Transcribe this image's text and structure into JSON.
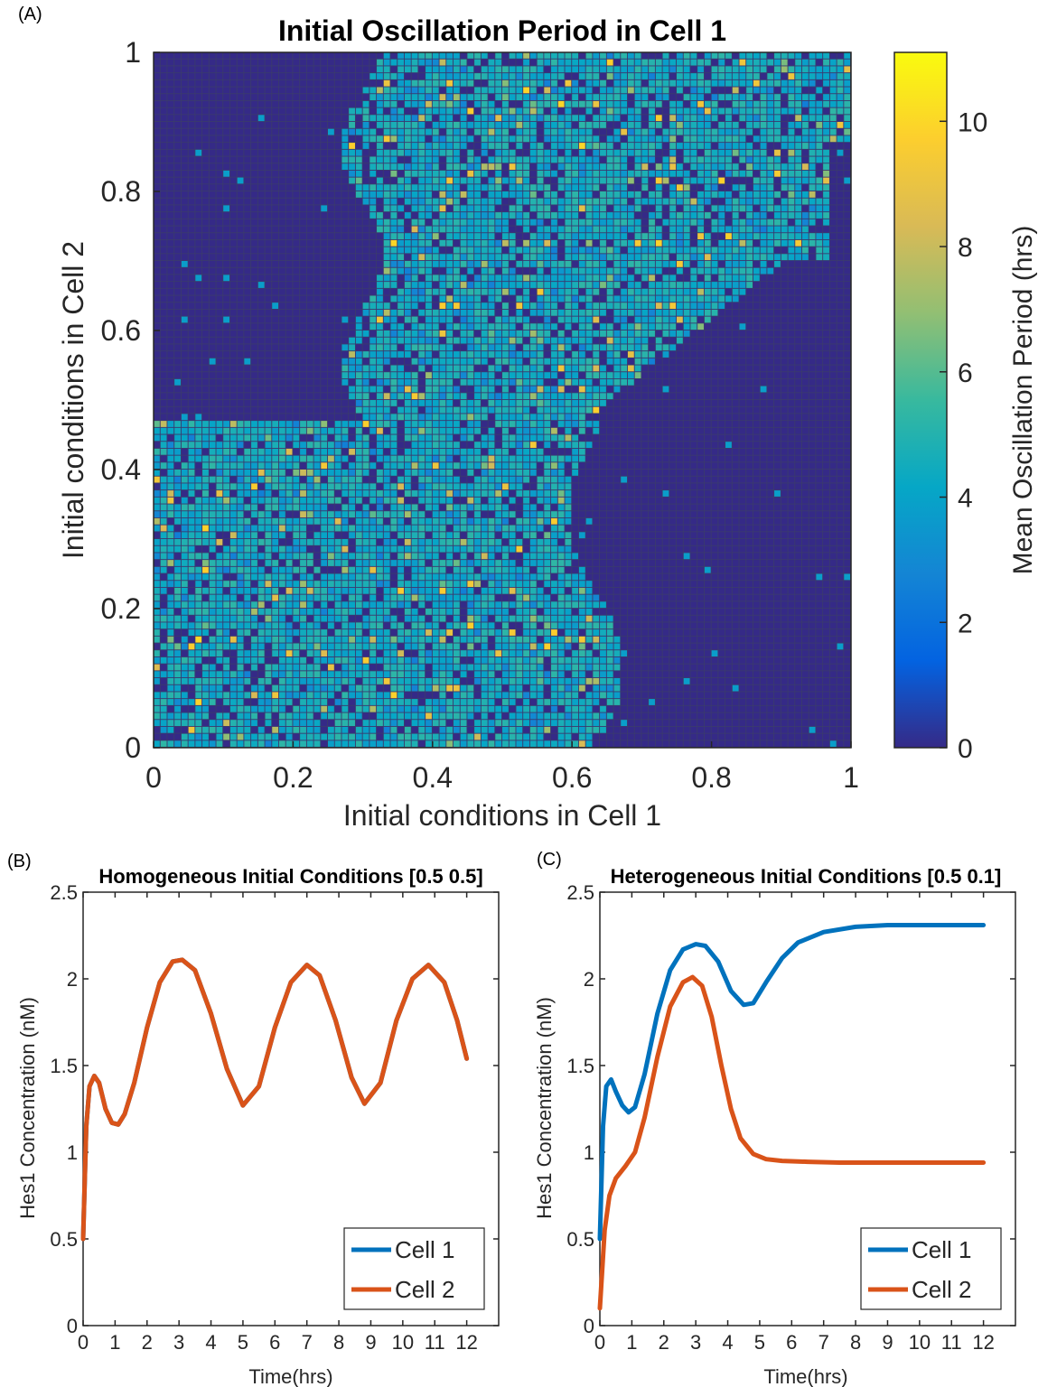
{
  "panels": {
    "a": "(A)",
    "b": "(B)",
    "c": "(C)"
  },
  "colors": {
    "cell1": "#0072BD",
    "cell2": "#D95319",
    "parula": [
      "#352A87",
      "#0363E1",
      "#1485D4",
      "#06A7C6",
      "#38B99E",
      "#92BF73",
      "#D9BA56",
      "#FCCE2E",
      "#F9FB0E"
    ]
  },
  "chart_data": [
    {
      "type": "heatmap",
      "title": "Initial Oscillation Period in Cell 1",
      "xlabel": "Initial conditions in Cell 1",
      "ylabel": "Initial conditions in Cell 2",
      "colorbar_label": "Mean Oscillation Period (hrs)",
      "xlim": [
        0,
        1
      ],
      "ylim": [
        0,
        1
      ],
      "clim": [
        0,
        11.1
      ],
      "xticks": [
        0,
        0.2,
        0.4,
        0.6,
        0.8,
        1
      ],
      "xtick_labels": [
        "0",
        "0.2",
        "0.4",
        "0.6",
        "0.8",
        "1"
      ],
      "yticks": [
        0,
        0.2,
        0.4,
        0.6,
        0.8,
        1
      ],
      "ytick_labels": [
        "0",
        "0.2",
        "0.4",
        "0.6",
        "0.8",
        "1"
      ],
      "colorbar_ticks": [
        0,
        2,
        4,
        6,
        8,
        10
      ],
      "colorbar_tick_labels": [
        "0",
        "2",
        "4",
        "6",
        "8",
        "10"
      ],
      "grid_size": 100,
      "description_values": {
        "oscillating_band_period": 4.5,
        "non_oscillating_period": 0
      }
    },
    {
      "type": "line",
      "title": "Homogeneous Initial Conditions [0.5 0.5]",
      "xlabel": "Time(hrs)",
      "ylabel": "Hes1 Concentration (nM)",
      "xlim": [
        0,
        13
      ],
      "ylim": [
        0,
        2.5
      ],
      "xticks": [
        0,
        1,
        2,
        3,
        4,
        5,
        6,
        7,
        8,
        9,
        10,
        11,
        12
      ],
      "xtick_labels": [
        "0",
        "1",
        "2",
        "3",
        "4",
        "5",
        "6",
        "7",
        "8",
        "9",
        "10",
        "11",
        "12"
      ],
      "yticks": [
        0,
        0.5,
        1,
        1.5,
        2,
        2.5
      ],
      "ytick_labels": [
        "0",
        "0.5",
        "1",
        "1.5",
        "2",
        "2.5"
      ],
      "legend_position": "bottom-right",
      "series": [
        {
          "name": "Cell 1",
          "x": [
            0,
            0.1,
            0.2,
            0.35,
            0.5,
            0.7,
            0.9,
            1.1,
            1.3,
            1.6,
            2.0,
            2.4,
            2.8,
            3.1,
            3.5,
            4.0,
            4.5,
            5.0,
            5.5,
            6.0,
            6.5,
            7.0,
            7.4,
            7.9,
            8.4,
            8.8,
            9.3,
            9.8,
            10.3,
            10.8,
            11.3,
            11.7,
            12.0
          ],
          "y": [
            0.5,
            1.15,
            1.38,
            1.44,
            1.4,
            1.25,
            1.17,
            1.16,
            1.22,
            1.4,
            1.72,
            1.98,
            2.1,
            2.11,
            2.05,
            1.8,
            1.48,
            1.27,
            1.38,
            1.72,
            1.98,
            2.08,
            2.02,
            1.76,
            1.43,
            1.28,
            1.4,
            1.76,
            2.0,
            2.08,
            1.98,
            1.76,
            1.54
          ]
        },
        {
          "name": "Cell 2",
          "x": [
            0,
            0.1,
            0.2,
            0.35,
            0.5,
            0.7,
            0.9,
            1.1,
            1.3,
            1.6,
            2.0,
            2.4,
            2.8,
            3.1,
            3.5,
            4.0,
            4.5,
            5.0,
            5.5,
            6.0,
            6.5,
            7.0,
            7.4,
            7.9,
            8.4,
            8.8,
            9.3,
            9.8,
            10.3,
            10.8,
            11.3,
            11.7,
            12.0
          ],
          "y": [
            0.5,
            1.15,
            1.38,
            1.44,
            1.4,
            1.25,
            1.17,
            1.16,
            1.22,
            1.4,
            1.72,
            1.98,
            2.1,
            2.11,
            2.05,
            1.8,
            1.48,
            1.27,
            1.38,
            1.72,
            1.98,
            2.08,
            2.02,
            1.76,
            1.43,
            1.28,
            1.4,
            1.76,
            2.0,
            2.08,
            1.98,
            1.76,
            1.54
          ]
        }
      ]
    },
    {
      "type": "line",
      "title": "Heterogeneous Initial Conditions [0.5 0.1]",
      "xlabel": "Time(hrs)",
      "ylabel": "Hes1 Concentration (nM)",
      "xlim": [
        0,
        13
      ],
      "ylim": [
        0,
        2.5
      ],
      "xticks": [
        0,
        1,
        2,
        3,
        4,
        5,
        6,
        7,
        8,
        9,
        10,
        11,
        12
      ],
      "xtick_labels": [
        "0",
        "1",
        "2",
        "3",
        "4",
        "5",
        "6",
        "7",
        "8",
        "9",
        "10",
        "11",
        "12"
      ],
      "yticks": [
        0,
        0.5,
        1,
        1.5,
        2,
        2.5
      ],
      "ytick_labels": [
        "0",
        "0.5",
        "1",
        "1.5",
        "2",
        "2.5"
      ],
      "legend_position": "bottom-right",
      "series": [
        {
          "name": "Cell 1",
          "x": [
            0,
            0.1,
            0.2,
            0.35,
            0.5,
            0.7,
            0.9,
            1.1,
            1.4,
            1.8,
            2.2,
            2.6,
            3.0,
            3.3,
            3.7,
            4.1,
            4.5,
            4.8,
            5.2,
            5.7,
            6.2,
            7.0,
            8.0,
            9.0,
            10.0,
            11.0,
            12.0
          ],
          "y": [
            0.5,
            1.15,
            1.38,
            1.42,
            1.35,
            1.27,
            1.23,
            1.26,
            1.45,
            1.8,
            2.05,
            2.17,
            2.2,
            2.19,
            2.1,
            1.93,
            1.85,
            1.86,
            1.98,
            2.12,
            2.21,
            2.27,
            2.3,
            2.31,
            2.31,
            2.31,
            2.31
          ]
        },
        {
          "name": "Cell 2",
          "x": [
            0,
            0.15,
            0.3,
            0.5,
            0.8,
            1.1,
            1.4,
            1.8,
            2.2,
            2.6,
            2.9,
            3.2,
            3.5,
            3.8,
            4.1,
            4.4,
            4.8,
            5.2,
            5.7,
            6.5,
            7.5,
            9.0,
            10.5,
            12.0
          ],
          "y": [
            0.1,
            0.55,
            0.75,
            0.85,
            0.92,
            1.0,
            1.2,
            1.55,
            1.84,
            1.98,
            2.01,
            1.96,
            1.78,
            1.5,
            1.25,
            1.08,
            0.99,
            0.96,
            0.95,
            0.945,
            0.94,
            0.94,
            0.94,
            0.94
          ]
        }
      ]
    }
  ]
}
